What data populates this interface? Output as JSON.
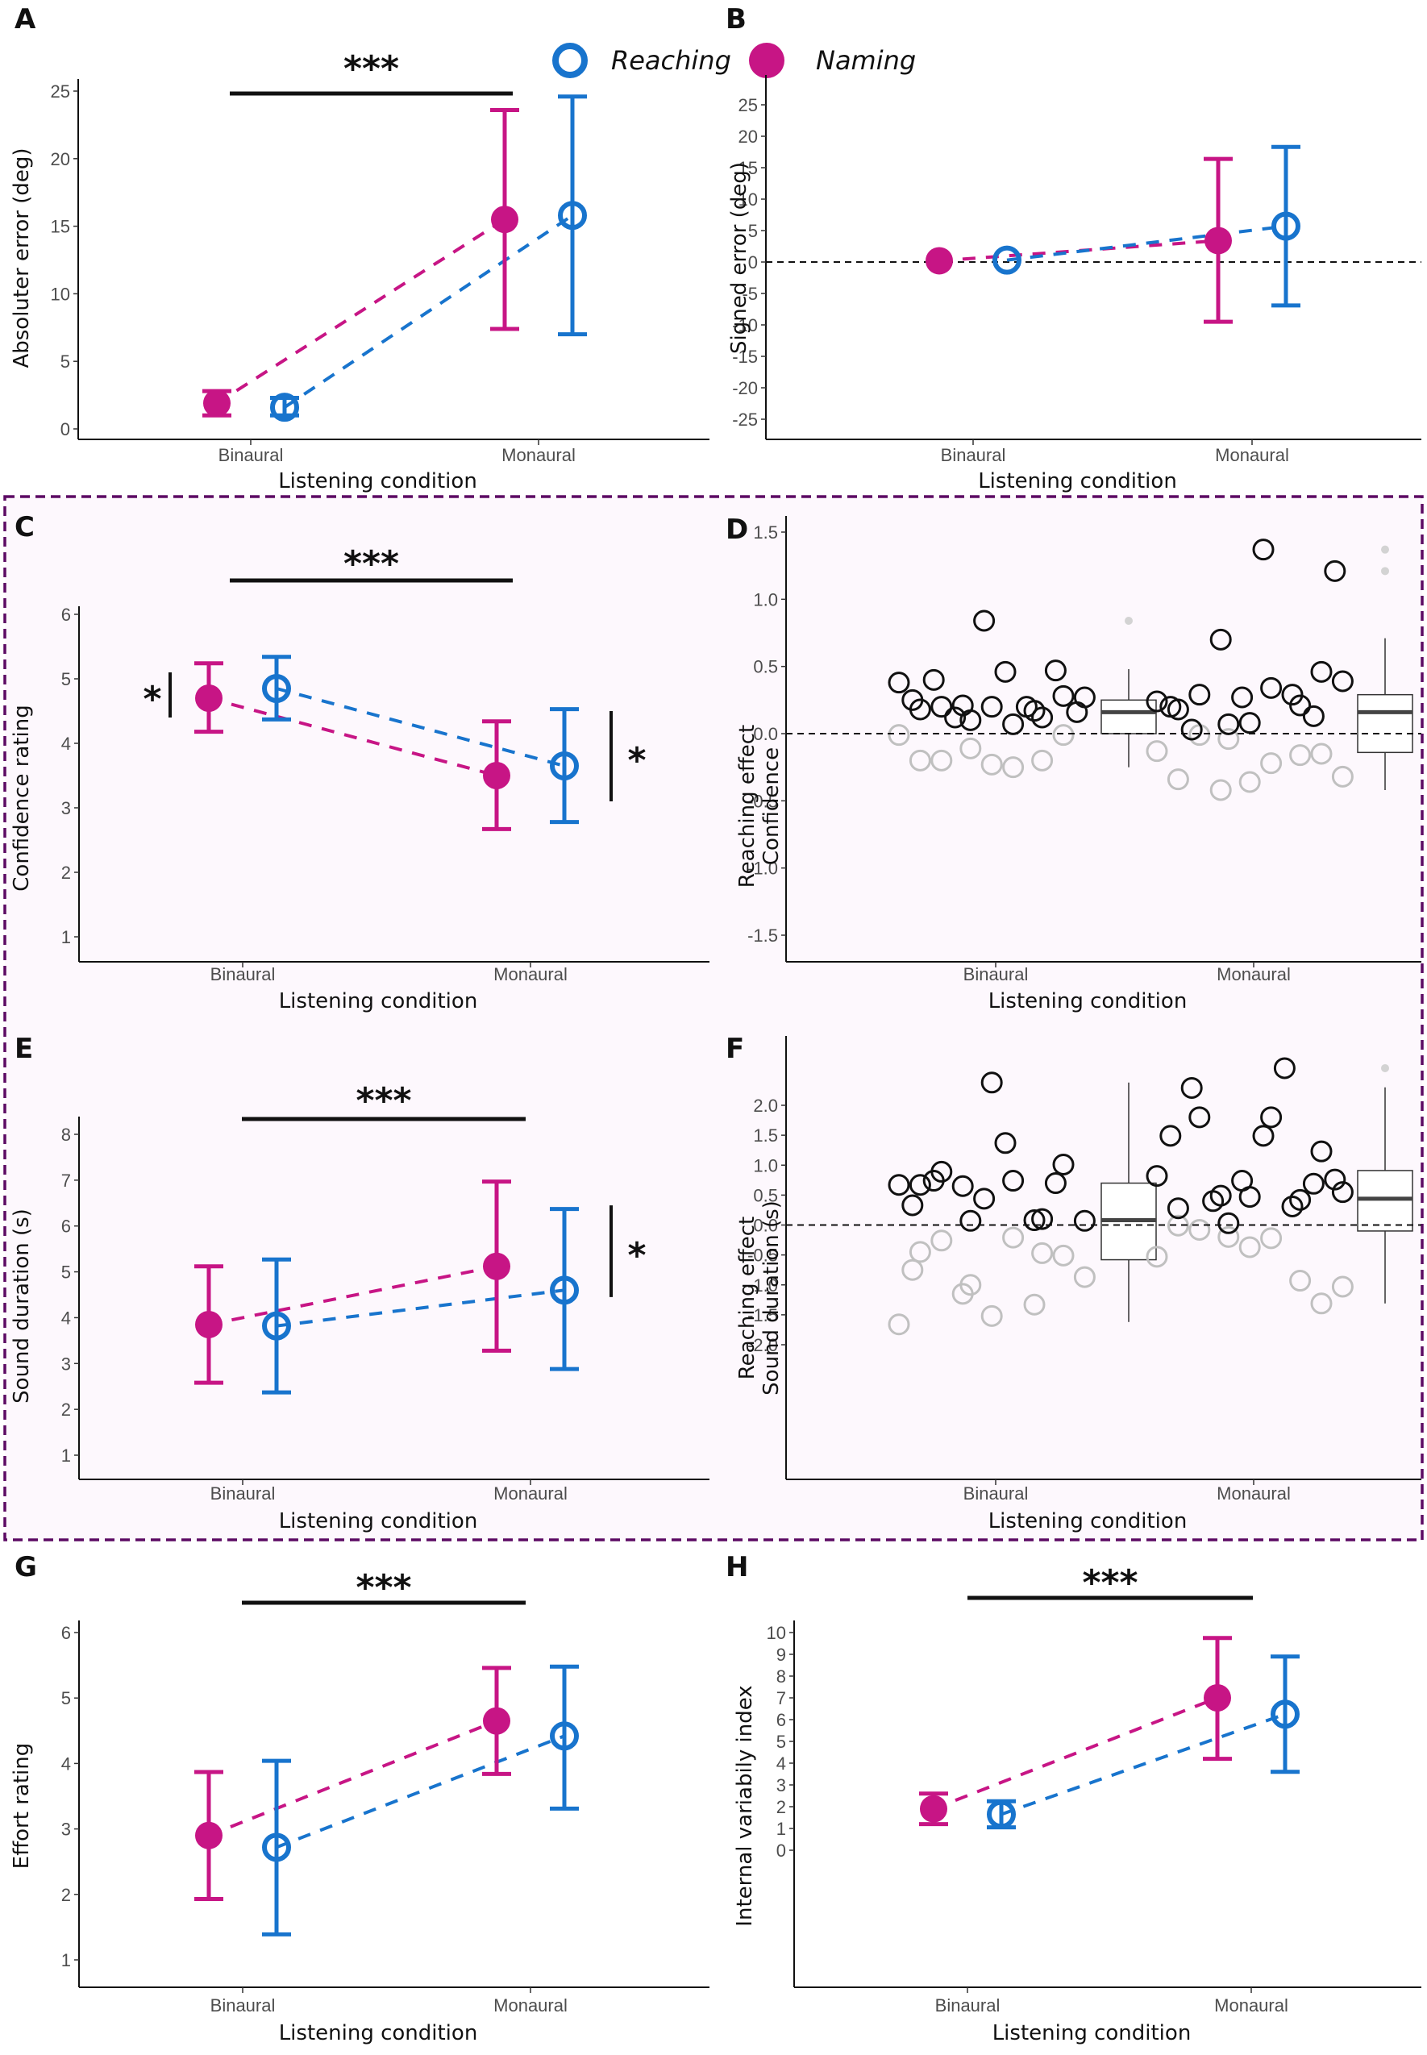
{
  "legend": {
    "items": [
      {
        "label": "Reaching",
        "marker": "open-circle",
        "color": "#1874cd"
      },
      {
        "label": "Naming",
        "marker": "filled-circle",
        "color": "#c71585"
      }
    ]
  },
  "colors": {
    "reaching": "#1874cd",
    "naming": "#c71585",
    "highlight_box_border": "#5c0a63",
    "highlight_box_fill": "#fdf8fd",
    "positive_points": "#111111",
    "negative_points": "#c0c0c0",
    "outlier": "#d3d3d3"
  },
  "chart_data": [
    {
      "panel": "A",
      "type": "line",
      "xlabel": "Listening condition",
      "ylabel": "Absoluter error (deg)",
      "categories": [
        "Binaural",
        "Monaural"
      ],
      "ylim": [
        0,
        25
      ],
      "yticks": [
        0,
        5,
        10,
        15,
        20,
        25
      ],
      "grid": false,
      "series": [
        {
          "name": "Naming",
          "values": [
            1.9,
            15.5
          ],
          "err_low": [
            1.0,
            7.4
          ],
          "err_high": [
            2.8,
            23.6
          ]
        },
        {
          "name": "Reaching",
          "values": [
            1.6,
            15.8
          ],
          "err_low": [
            1.0,
            7.0
          ],
          "err_high": [
            2.3,
            24.6
          ]
        }
      ],
      "significance": [
        {
          "type": "horizontal",
          "from": "Binaural",
          "to": "Monaural",
          "label": "***"
        }
      ]
    },
    {
      "panel": "B",
      "type": "line",
      "xlabel": "Listening condition",
      "ylabel": "Signed error (deg)",
      "categories": [
        "Binaural",
        "Monaural"
      ],
      "ylim": [
        -25,
        25
      ],
      "yticks": [
        -25,
        -20,
        -15,
        -10,
        -5,
        0,
        5,
        10,
        15,
        20,
        25
      ],
      "reference_line": 0,
      "grid": false,
      "series": [
        {
          "name": "Naming",
          "values": [
            0.2,
            3.4
          ],
          "err_low": [
            0.2,
            -9.5
          ],
          "err_high": [
            0.2,
            16.4
          ]
        },
        {
          "name": "Reaching",
          "values": [
            0.3,
            5.7
          ],
          "err_low": [
            0.3,
            -6.9
          ],
          "err_high": [
            0.3,
            18.3
          ]
        }
      ],
      "significance": []
    },
    {
      "panel": "C",
      "type": "line",
      "xlabel": "Listening condition",
      "ylabel": "Confidence rating",
      "categories": [
        "Binaural",
        "Monaural"
      ],
      "ylim": [
        1,
        6
      ],
      "yticks": [
        1,
        2,
        3,
        4,
        5,
        6
      ],
      "grid": false,
      "series": [
        {
          "name": "Naming",
          "values": [
            4.7,
            3.5
          ],
          "err_low": [
            4.18,
            2.67
          ],
          "err_high": [
            5.24,
            4.34
          ]
        },
        {
          "name": "Reaching",
          "values": [
            4.85,
            3.65
          ],
          "err_low": [
            4.37,
            2.78
          ],
          "err_high": [
            5.34,
            4.53
          ]
        }
      ],
      "significance": [
        {
          "type": "horizontal",
          "from": "Binaural",
          "to": "Monaural",
          "label": "***"
        },
        {
          "type": "vertical",
          "at": "Binaural",
          "side": "left",
          "label": "*",
          "range": [
            4.4,
            5.1
          ]
        },
        {
          "type": "vertical",
          "at": "Monaural",
          "side": "right",
          "label": "*",
          "range": [
            3.1,
            4.5
          ]
        }
      ]
    },
    {
      "panel": "D",
      "type": "scatter",
      "xlabel": "Listening condition",
      "ylabel": "Reaching effect\nConfidence",
      "ylabel_lines": [
        "Reaching effect",
        "Confidence"
      ],
      "categories": [
        "Binaural",
        "Monaural"
      ],
      "ylim": [
        -1.5,
        1.5
      ],
      "yticks": [
        -1.5,
        -1.0,
        -0.5,
        0.0,
        0.5,
        1.0,
        1.5
      ],
      "ytick_labels": [
        "-1.5",
        "-1.0",
        "-0.5",
        "0.0",
        "0.5",
        "1.0",
        "1.5"
      ],
      "reference_line": 0,
      "grid": false,
      "points": {
        "Binaural": {
          "positive": [
            0.38,
            0.1,
            0.12,
            0.18,
            0.2,
            0.28,
            0.2,
            0.07,
            0.27,
            0.21,
            0.17,
            0.25,
            0.84,
            0.47,
            0.4,
            0.46,
            0.16,
            0.12,
            0.2
          ],
          "negative": [
            -0.01,
            -0.11,
            -0.2,
            -0.2,
            -0.23,
            -0.01,
            -0.2,
            -0.25
          ]
        },
        "Monaural": {
          "positive": [
            0.24,
            0.07,
            0.21,
            0.18,
            0.08,
            0.46,
            0.29,
            0.34,
            0.39,
            0.7,
            0.29,
            0.2,
            0.27,
            0.13,
            0.03,
            1.37,
            1.21
          ],
          "negative": [
            -0.13,
            -0.04,
            -0.16,
            -0.34,
            -0.36,
            -0.15,
            -0.01,
            -0.22,
            -0.32,
            -0.42
          ]
        }
      },
      "boxplots": {
        "Binaural": {
          "min": -0.25,
          "q1": 0.0,
          "median": 0.16,
          "q3": 0.25,
          "max": 0.48,
          "outliers": [
            0.84
          ]
        },
        "Monaural": {
          "min": -0.42,
          "q1": -0.14,
          "median": 0.16,
          "q3": 0.29,
          "max": 0.71,
          "outliers": [
            1.21,
            1.37
          ]
        }
      }
    },
    {
      "panel": "E",
      "type": "line",
      "xlabel": "Listening condition",
      "ylabel": "Sound duration (s)",
      "categories": [
        "Binaural",
        "Monaural"
      ],
      "ylim": [
        1,
        8
      ],
      "yticks": [
        1,
        2,
        3,
        4,
        5,
        6,
        7,
        8
      ],
      "grid": false,
      "series": [
        {
          "name": "Naming",
          "values": [
            3.85,
            5.12
          ],
          "err_low": [
            2.58,
            3.28
          ],
          "err_high": [
            5.12,
            6.97
          ]
        },
        {
          "name": "Reaching",
          "values": [
            3.82,
            4.6
          ],
          "err_low": [
            2.37,
            2.88
          ],
          "err_high": [
            5.27,
            6.37
          ]
        }
      ],
      "significance": [
        {
          "type": "horizontal",
          "from": "Binaural",
          "to": "Monaural",
          "label": "***"
        },
        {
          "type": "vertical",
          "at": "Monaural",
          "side": "right",
          "label": "*",
          "range": [
            4.45,
            6.45
          ]
        }
      ]
    },
    {
      "panel": "F",
      "type": "scatter",
      "xlabel": "Listening condition",
      "ylabel": "Reaching effect\nSound duration (s)",
      "ylabel_lines": [
        "Reaching effect",
        "Sound duration (s)"
      ],
      "categories": [
        "Binaural",
        "Monaural"
      ],
      "ylim": [
        -2.0,
        2.0
      ],
      "yticks": [
        -2.0,
        -1.5,
        -1.0,
        -0.5,
        0.0,
        0.5,
        1.0,
        1.5,
        2.0
      ],
      "ytick_labels": [
        "-2.0",
        "-1.5",
        "-1.0",
        "-0.5",
        "0.0",
        "0.5",
        "1.0",
        "1.5",
        "2.0"
      ],
      "reference_line": 0,
      "grid": false,
      "points": {
        "Binaural": {
          "positive": [
            0.67,
            0.07,
            0.1,
            0.67,
            2.38,
            1.01,
            0.89,
            0.74,
            0.07,
            0.65,
            0.08,
            0.33,
            0.44,
            0.7,
            0.74,
            1.37
          ],
          "negative": [
            -1.66,
            -1.0,
            -0.47,
            -0.45,
            -1.52,
            -0.51,
            -0.26,
            -0.21,
            -0.87,
            -1.15,
            -1.33,
            -0.75
          ]
        },
        "Monaural": {
          "positive": [
            0.82,
            0.03,
            0.42,
            0.28,
            0.47,
            1.23,
            1.8,
            1.8,
            0.55,
            0.49,
            0.31,
            1.49,
            0.74,
            0.69,
            2.29,
            1.49,
            0.76,
            0.4,
            2.62
          ],
          "negative": [
            -0.53,
            -0.2,
            -0.93,
            -0.01,
            -0.37,
            -1.31,
            -0.08,
            -0.22,
            -1.03
          ]
        }
      },
      "boxplots": {
        "Binaural": {
          "min": -1.62,
          "q1": -0.58,
          "median": 0.08,
          "q3": 0.7,
          "max": 2.38,
          "outliers": []
        },
        "Monaural": {
          "min": -1.31,
          "q1": -0.1,
          "median": 0.44,
          "q3": 0.91,
          "max": 2.3,
          "outliers": [
            2.62
          ]
        }
      }
    },
    {
      "panel": "G",
      "type": "line",
      "xlabel": "Listening condition",
      "ylabel": "Effort rating",
      "categories": [
        "Binaural",
        "Monaural"
      ],
      "ylim": [
        1,
        6
      ],
      "yticks": [
        1,
        2,
        3,
        4,
        5,
        6
      ],
      "grid": false,
      "series": [
        {
          "name": "Naming",
          "values": [
            2.9,
            4.65
          ],
          "err_low": [
            1.93,
            3.84
          ],
          "err_high": [
            3.87,
            5.46
          ]
        },
        {
          "name": "Reaching",
          "values": [
            2.72,
            4.42
          ],
          "err_low": [
            1.39,
            3.31
          ],
          "err_high": [
            4.04,
            5.48
          ]
        }
      ],
      "significance": [
        {
          "type": "horizontal",
          "from": "Binaural",
          "to": "Monaural",
          "label": "***"
        }
      ]
    },
    {
      "panel": "H",
      "type": "line",
      "xlabel": "Listening condition",
      "ylabel": "Internal variabily index",
      "categories": [
        "Binaural",
        "Monaural"
      ],
      "ylim": [
        0,
        10
      ],
      "yticks": [
        0,
        1,
        2,
        3,
        4,
        5,
        6,
        7,
        8,
        9,
        10
      ],
      "grid": false,
      "series": [
        {
          "name": "Naming",
          "values": [
            1.9,
            7.0
          ],
          "err_low": [
            1.2,
            4.2
          ],
          "err_high": [
            2.6,
            9.75
          ]
        },
        {
          "name": "Reaching",
          "values": [
            1.65,
            6.25
          ],
          "err_low": [
            1.05,
            3.6
          ],
          "err_high": [
            2.25,
            8.9
          ]
        }
      ],
      "significance": [
        {
          "type": "horizontal",
          "from": "Binaural",
          "to": "Monaural",
          "label": "***"
        }
      ]
    }
  ]
}
